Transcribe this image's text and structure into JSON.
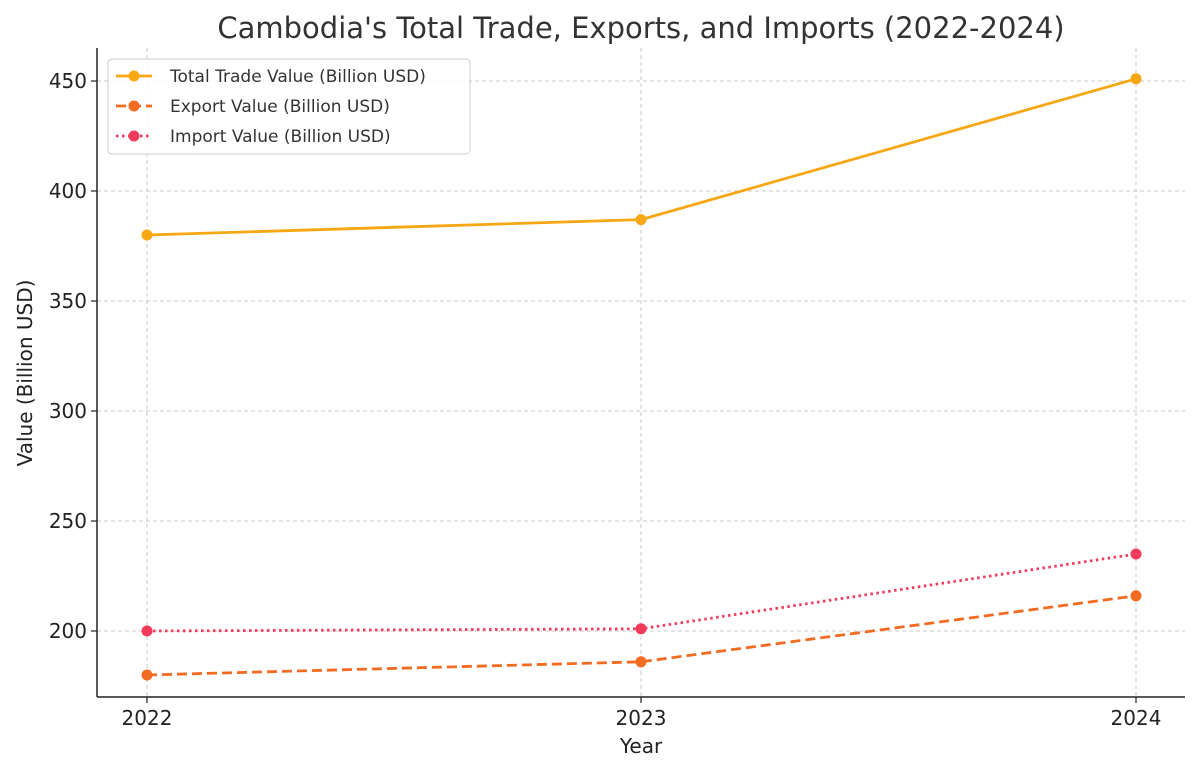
{
  "chart_data": {
    "type": "line",
    "title": "Cambodia's Total Trade, Exports, and Imports (2022-2024)",
    "xlabel": "Year",
    "ylabel": "Value (Billion USD)",
    "categories": [
      "2022",
      "2023",
      "2024"
    ],
    "y_ticks": [
      200,
      250,
      300,
      350,
      400,
      450
    ],
    "ylim": [
      170,
      465
    ],
    "grid": true,
    "legend_position": "top-left",
    "series": [
      {
        "name": "Total Trade Value (Billion USD)",
        "values": [
          380,
          387,
          451
        ],
        "color": "#F7A713",
        "line_style": "solid",
        "marker": "circle"
      },
      {
        "name": "Export Value (Billion USD)",
        "values": [
          180,
          186,
          216
        ],
        "color": "#F26B21",
        "line_style": "dashed",
        "marker": "circle"
      },
      {
        "name": "Import Value (Billion USD)",
        "values": [
          200,
          201,
          235
        ],
        "color": "#F23A5B",
        "line_style": "dotted",
        "marker": "circle"
      }
    ]
  }
}
